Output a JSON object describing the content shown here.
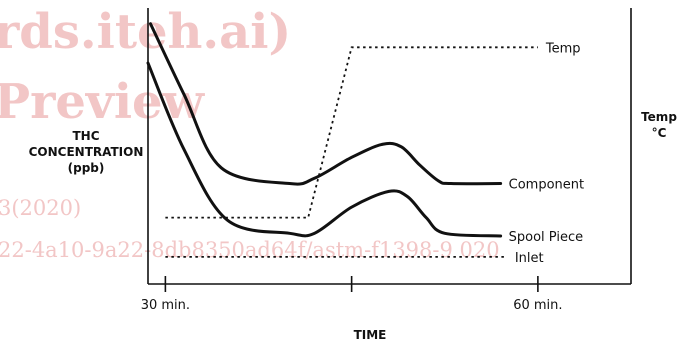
{
  "watermark": {
    "line1": "rds.iteh.ai)",
    "line2": "Preview",
    "line3": "3(2020)",
    "line4": "22-4a10-9a22-8db8350ad64f/astm-f1398-9 020"
  },
  "chart_data": {
    "type": "line",
    "xlabel": "TIME",
    "ylabel_lines": [
      "THC",
      "CONCENTRATION",
      "(ppb)"
    ],
    "y2label_lines": [
      "Temp",
      "°C"
    ],
    "x_ticks": [
      {
        "x": 30,
        "label": "30 min."
      },
      {
        "x": 45,
        "label": ""
      },
      {
        "x": 60,
        "label": "60 min."
      }
    ],
    "xlim": [
      28.6,
      67.5
    ],
    "ylim": [
      0,
      100
    ],
    "y_ticks": [],
    "series": [
      {
        "name": "Component",
        "style": "solid",
        "points": [
          [
            28.8,
            94
          ],
          [
            31.5,
            67
          ],
          [
            34.5,
            39
          ],
          [
            40,
            33
          ],
          [
            42,
            35
          ],
          [
            45,
            43
          ],
          [
            47.5,
            48
          ],
          [
            49,
            47
          ],
          [
            50.5,
            40
          ],
          [
            52,
            34
          ],
          [
            53,
            33
          ],
          [
            57,
            33
          ]
        ]
      },
      {
        "name": "Spool Piece",
        "style": "solid",
        "points": [
          [
            28.6,
            79
          ],
          [
            31.5,
            46
          ],
          [
            35,
            19
          ],
          [
            40,
            14
          ],
          [
            42,
            14
          ],
          [
            45,
            24
          ],
          [
            48,
            30
          ],
          [
            49.5,
            28
          ],
          [
            51,
            20
          ],
          [
            52.5,
            14
          ],
          [
            57,
            13
          ]
        ]
      },
      {
        "name": "Temp",
        "style": "dotted",
        "points": [
          [
            30,
            20
          ],
          [
            41.5,
            20
          ],
          [
            45,
            85
          ],
          [
            60,
            85
          ]
        ]
      },
      {
        "name": "Inlet",
        "style": "dotted",
        "points": [
          [
            30,
            5
          ],
          [
            57.5,
            5
          ]
        ]
      }
    ]
  }
}
